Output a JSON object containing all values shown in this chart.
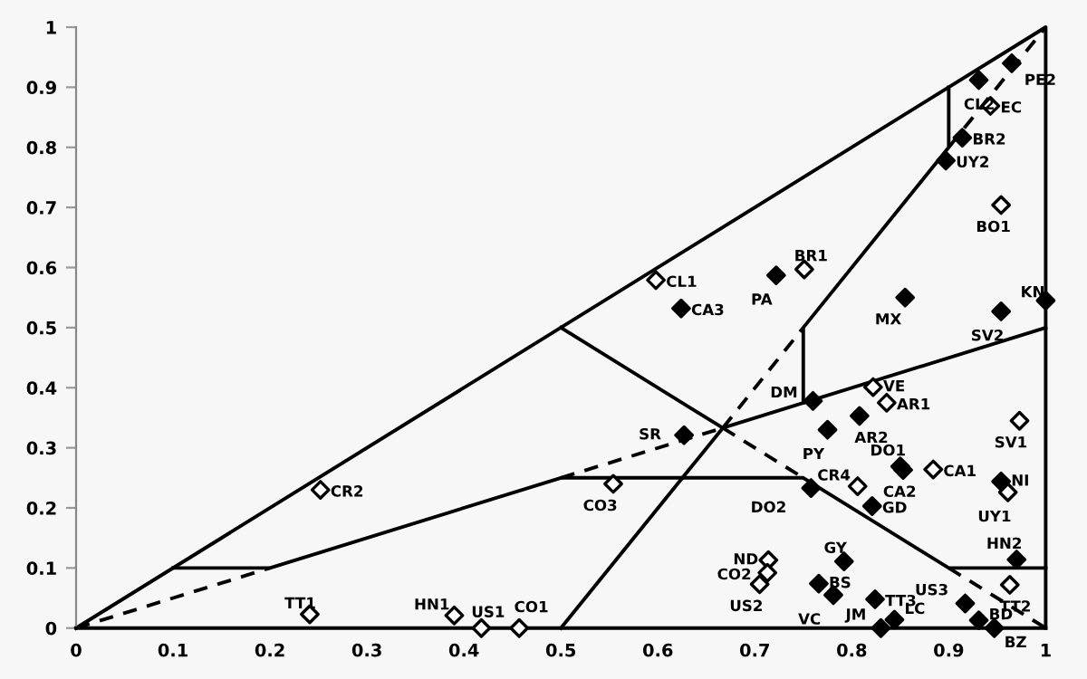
{
  "chart_data": {
    "type": "scatter",
    "xlim": [
      0,
      1
    ],
    "ylim": [
      0,
      1
    ],
    "xticks": [
      0,
      0.1,
      0.2,
      0.3,
      0.4,
      0.5,
      0.6,
      0.7,
      0.8,
      0.9,
      1
    ],
    "yticks": [
      0,
      0.1,
      0.2,
      0.3,
      0.4,
      0.5,
      0.6,
      0.7,
      0.8,
      0.9,
      1
    ],
    "grid": false,
    "legend": false,
    "marker": "diamond",
    "series": [
      {
        "type": "line",
        "marker": "none",
        "color": "#000000",
        "line_style": "solid",
        "x": [
          0,
          1,
          1
        ],
        "values": [
          0,
          1,
          0
        ]
      },
      {
        "type": "line",
        "marker": "none",
        "color": "#000000",
        "line_style": "dashed",
        "x": [
          0,
          0.2
        ],
        "values": [
          0,
          0.1
        ]
      },
      {
        "type": "line",
        "marker": "none",
        "color": "#000000",
        "line_style": "solid",
        "x": [
          0.1,
          0.2,
          0.5,
          0.75,
          0.9,
          1
        ],
        "values": [
          0.1,
          0.1,
          0.25,
          0.25,
          0.1,
          0.1
        ]
      },
      {
        "type": "line",
        "marker": "none",
        "color": "#000000",
        "line_style": "dashed",
        "x": [
          0.5,
          0.667
        ],
        "values": [
          0.25,
          0.333
        ]
      },
      {
        "type": "line",
        "marker": "none",
        "color": "#000000",
        "line_style": "solid",
        "x": [
          0.5,
          0.667,
          1
        ],
        "values": [
          0.5,
          0.333,
          0.5
        ]
      },
      {
        "type": "line",
        "marker": "none",
        "color": "#000000",
        "line_style": "solid",
        "x": [
          0.5,
          0.667
        ],
        "values": [
          0,
          0.333
        ]
      },
      {
        "type": "line",
        "marker": "none",
        "color": "#000000",
        "line_style": "dashed",
        "x": [
          0.667,
          0.75
        ],
        "values": [
          0.333,
          0.5
        ]
      },
      {
        "type": "line",
        "marker": "none",
        "color": "#000000",
        "line_style": "solid",
        "x": [
          0.75,
          0.75,
          0.9,
          0.9
        ],
        "values": [
          0.375,
          0.5,
          0.8,
          0.9
        ]
      },
      {
        "type": "line",
        "marker": "none",
        "color": "#000000",
        "line_style": "dashed",
        "x": [
          0.9,
          1
        ],
        "values": [
          0.8,
          1
        ]
      },
      {
        "type": "line",
        "marker": "none",
        "color": "#000000",
        "line_style": "dashed",
        "x": [
          0.667,
          0.75
        ],
        "values": [
          0.333,
          0.25
        ]
      },
      {
        "type": "line",
        "marker": "none",
        "color": "#000000",
        "line_style": "dashed",
        "x": [
          0.9,
          1
        ],
        "values": [
          0.1,
          0
        ]
      },
      {
        "color": "#000000",
        "x": [
          0.965,
          0.931,
          0.914,
          0.897,
          0.722,
          0.624,
          0.855,
          1.0,
          0.954,
          0.76,
          0.808,
          0.627,
          0.775,
          0.85,
          0.853,
          0.954,
          0.758,
          0.821,
          0.792,
          0.97,
          0.766,
          0.781,
          0.824,
          0.917,
          0.844,
          0.83,
          0.931,
          0.947
        ],
        "values": [
          0.94,
          0.912,
          0.816,
          0.778,
          0.587,
          0.532,
          0.55,
          0.545,
          0.527,
          0.378,
          0.353,
          0.321,
          0.33,
          0.269,
          0.263,
          0.244,
          0.233,
          0.203,
          0.111,
          0.114,
          0.074,
          0.055,
          0.048,
          0.041,
          0.014,
          0,
          0.013,
          0
        ]
      },
      {
        "color": "#ffffff",
        "x": [
          0.943,
          0.954,
          0.598,
          0.751,
          0.252,
          0.241,
          0.39,
          0.418,
          0.457,
          0.822,
          0.836,
          0.973,
          0.884,
          0.806,
          0.961,
          0.554,
          0.714,
          0.713,
          0.705,
          0.963
        ],
        "values": [
          0.869,
          0.704,
          0.579,
          0.597,
          0.23,
          0.023,
          0.021,
          0,
          0,
          0.401,
          0.375,
          0.345,
          0.264,
          0.236,
          0.226,
          0.24,
          0.113,
          0.092,
          0.073,
          0.072
        ]
      }
    ],
    "annotations": [
      {
        "text": "PE2",
        "x": 0.965,
        "y": 0.94
      },
      {
        "text": "CL2",
        "x": 0.931,
        "y": 0.912
      },
      {
        "text": "BR2",
        "x": 0.914,
        "y": 0.816
      },
      {
        "text": "UY2",
        "x": 0.897,
        "y": 0.778
      },
      {
        "text": "PA",
        "x": 0.722,
        "y": 0.587
      },
      {
        "text": "CA3",
        "x": 0.624,
        "y": 0.532
      },
      {
        "text": "MX",
        "x": 0.855,
        "y": 0.55
      },
      {
        "text": "KN",
        "x": 1.0,
        "y": 0.545
      },
      {
        "text": "SV2",
        "x": 0.954,
        "y": 0.527
      },
      {
        "text": "DM",
        "x": 0.76,
        "y": 0.378
      },
      {
        "text": "AR2",
        "x": 0.808,
        "y": 0.353
      },
      {
        "text": "SR",
        "x": 0.627,
        "y": 0.321
      },
      {
        "text": "PY",
        "x": 0.775,
        "y": 0.33
      },
      {
        "text": "DO1",
        "x": 0.85,
        "y": 0.269
      },
      {
        "text": "CA2",
        "x": 0.853,
        "y": 0.263
      },
      {
        "text": "NI",
        "x": 0.954,
        "y": 0.244
      },
      {
        "text": "DO2",
        "x": 0.758,
        "y": 0.233
      },
      {
        "text": "GD",
        "x": 0.821,
        "y": 0.203
      },
      {
        "text": "GY",
        "x": 0.792,
        "y": 0.111
      },
      {
        "text": "HN2",
        "x": 0.97,
        "y": 0.114
      },
      {
        "text": "BS",
        "x": 0.766,
        "y": 0.074
      },
      {
        "text": "VC",
        "x": 0.781,
        "y": 0.055
      },
      {
        "text": "TT3",
        "x": 0.824,
        "y": 0.048
      },
      {
        "text": "US3",
        "x": 0.917,
        "y": 0.041
      },
      {
        "text": "LC",
        "x": 0.844,
        "y": 0.014
      },
      {
        "text": "JM",
        "x": 0.83,
        "y": 0
      },
      {
        "text": "BD",
        "x": 0.931,
        "y": 0.013
      },
      {
        "text": "BZ",
        "x": 0.947,
        "y": 0
      },
      {
        "text": "EC",
        "x": 0.943,
        "y": 0.869
      },
      {
        "text": "BO1",
        "x": 0.954,
        "y": 0.704
      },
      {
        "text": "CL1",
        "x": 0.598,
        "y": 0.579
      },
      {
        "text": "BR1",
        "x": 0.751,
        "y": 0.597
      },
      {
        "text": "CR2",
        "x": 0.252,
        "y": 0.23
      },
      {
        "text": "TT1",
        "x": 0.241,
        "y": 0.023
      },
      {
        "text": "HN1",
        "x": 0.39,
        "y": 0.021
      },
      {
        "text": "US1",
        "x": 0.418,
        "y": 0
      },
      {
        "text": "CO1",
        "x": 0.457,
        "y": 0
      },
      {
        "text": "VE",
        "x": 0.822,
        "y": 0.401
      },
      {
        "text": "AR1",
        "x": 0.836,
        "y": 0.375
      },
      {
        "text": "SV1",
        "x": 0.973,
        "y": 0.345
      },
      {
        "text": "CA1",
        "x": 0.884,
        "y": 0.264
      },
      {
        "text": "CR4",
        "x": 0.806,
        "y": 0.236
      },
      {
        "text": "UY1",
        "x": 0.961,
        "y": 0.226
      },
      {
        "text": "CO3",
        "x": 0.554,
        "y": 0.24
      },
      {
        "text": "ND",
        "x": 0.714,
        "y": 0.113
      },
      {
        "text": "CO2",
        "x": 0.713,
        "y": 0.092
      },
      {
        "text": "US2",
        "x": 0.705,
        "y": 0.073
      },
      {
        "text": "TT2",
        "x": 0.963,
        "y": 0.072
      }
    ]
  }
}
